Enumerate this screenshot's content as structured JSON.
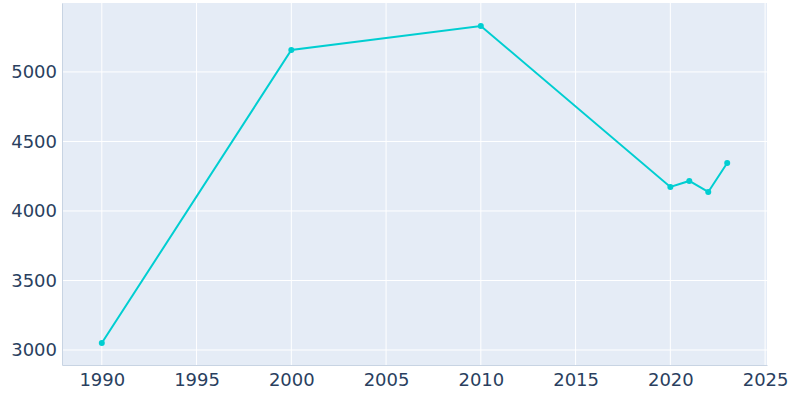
{
  "chart_data": {
    "type": "line",
    "x": [
      1990,
      2000,
      2010,
      2020,
      2021,
      2022,
      2023
    ],
    "values": [
      3050,
      5158,
      5331,
      4173,
      4216,
      4137,
      4345
    ],
    "color": "#00ced1",
    "marker": "circle",
    "xlim": [
      1987.9,
      2025.1
    ],
    "xticks": [
      1990,
      1995,
      2000,
      2005,
      2010,
      2015,
      2020,
      2025
    ],
    "ylim": [
      2892,
      5496
    ],
    "yticks": [
      3000,
      3500,
      4000,
      4500,
      5000
    ],
    "grid": true
  }
}
